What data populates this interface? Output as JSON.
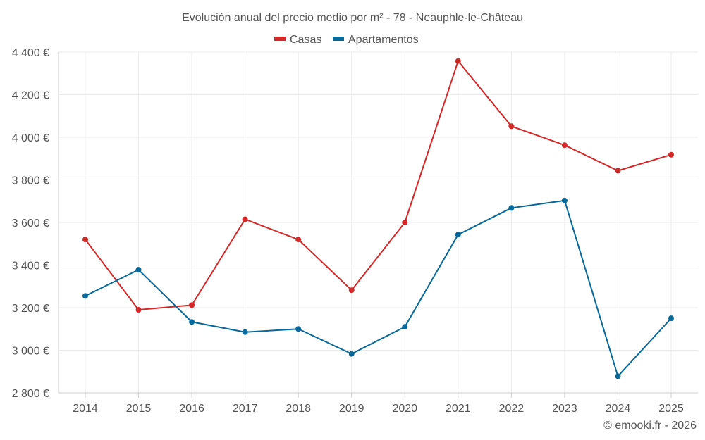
{
  "chart_data": {
    "type": "line",
    "title": "Evolución anual del precio medio por m² - 78 - Neauphle-le-Château",
    "categories": [
      "2014",
      "2015",
      "2016",
      "2017",
      "2018",
      "2019",
      "2020",
      "2021",
      "2022",
      "2023",
      "2024",
      "2025"
    ],
    "ylim": [
      2800,
      4400
    ],
    "yticks": [
      2800,
      3000,
      3200,
      3400,
      3600,
      3800,
      4000,
      4200,
      4400
    ],
    "ytick_labels": [
      "2 800 €",
      "3 000 €",
      "3 200 €",
      "3 400 €",
      "3 600 €",
      "3 800 €",
      "4 000 €",
      "4 200 €",
      "4 400 €"
    ],
    "grid": true,
    "legend_position": "top-center",
    "series": [
      {
        "name": "Casas",
        "color": "#d62728",
        "values": [
          3520,
          3190,
          3212,
          3615,
          3520,
          3282,
          3600,
          4358,
          4052,
          3963,
          3843,
          3918
        ]
      },
      {
        "name": "Apartamentos",
        "color": "#06699b",
        "values": [
          3255,
          3378,
          3133,
          3085,
          3100,
          2983,
          3110,
          3543,
          3668,
          3703,
          2878,
          3150
        ]
      }
    ],
    "credit": "© emooki.fr - 2026"
  }
}
